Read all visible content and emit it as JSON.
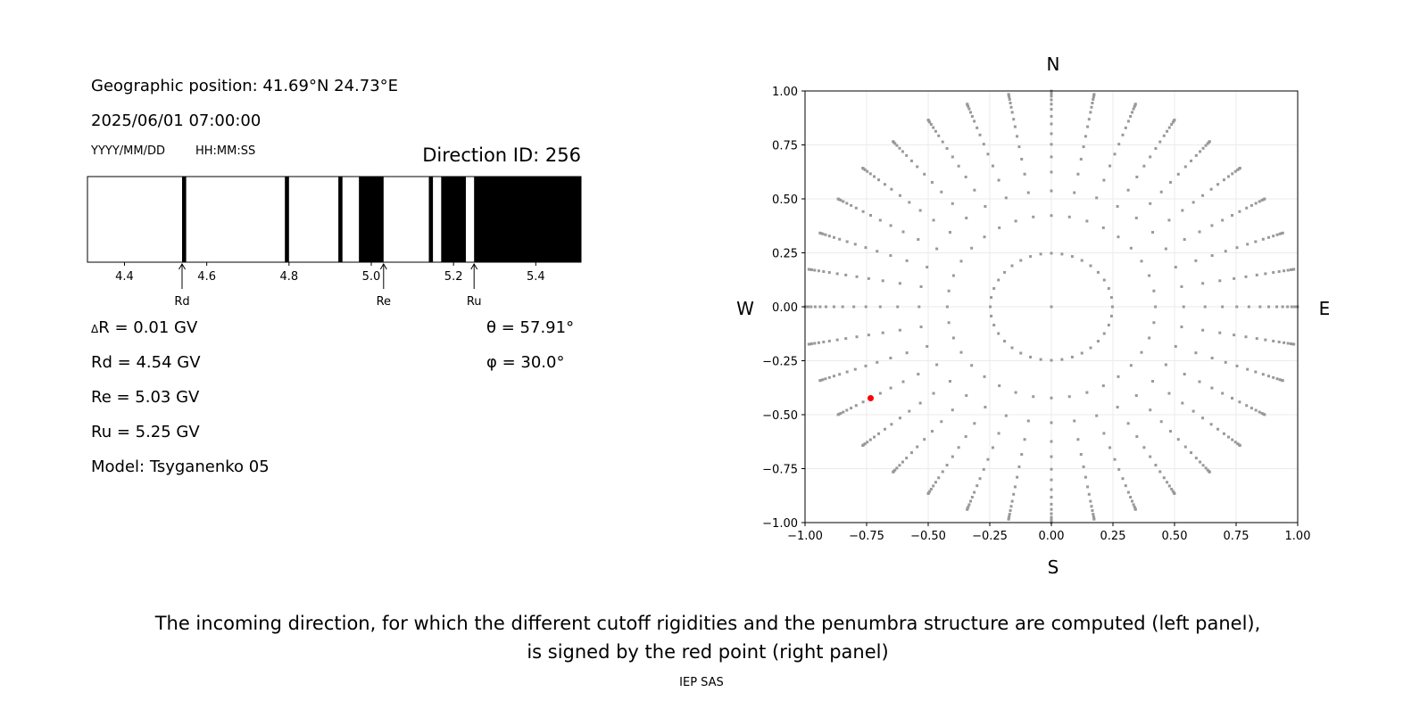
{
  "info": {
    "geo_position": "Geographic position: 41.69°N 24.73°E",
    "datetime": "2025/06/01 07:00:00",
    "date_format": "YYYY/MM/DD",
    "time_format": "HH:MM:SS",
    "direction_id": "Direction ID: 256",
    "delta_r_symbol": "Δ",
    "delta_r": "R = 0.01 GV",
    "rd": "Rd = 4.54 GV",
    "re": "Re = 5.03 GV",
    "ru": "Ru = 5.25 GV",
    "model": "Model: Tsyganenko 05",
    "theta": "θ = 57.91°",
    "phi": "φ = 30.0°"
  },
  "caption": {
    "line1": "The incoming direction, for which the different cutoff rigidities and the penumbra structure are computed (left panel),",
    "line2": "is signed by the red point (right panel)",
    "credit": "IEP SAS"
  },
  "compass": {
    "n": "N",
    "s": "S",
    "w": "W",
    "e": "E"
  },
  "chart_data": [
    {
      "type": "bar",
      "xlim": [
        4.31,
        5.51
      ],
      "xticks": [
        4.4,
        4.6,
        4.8,
        5.0,
        5.2,
        5.4
      ],
      "xtick_labels": [
        "4.4",
        "4.6",
        "4.8",
        "5.0",
        "5.2",
        "5.4"
      ],
      "forbidden_bands_gv": [
        [
          4.54,
          4.55
        ],
        [
          4.79,
          4.8
        ],
        [
          4.92,
          4.93
        ],
        [
          4.97,
          5.03
        ],
        [
          5.14,
          5.15
        ],
        [
          5.17,
          5.23
        ],
        [
          5.25,
          5.51
        ]
      ],
      "colors": {
        "allowed": "#ffffff",
        "forbidden": "#000000"
      },
      "markers": [
        {
          "label": "Rd",
          "value": 4.54
        },
        {
          "label": "Re",
          "value": 5.03
        },
        {
          "label": "Ru",
          "value": 5.25
        }
      ]
    },
    {
      "type": "scatter",
      "xlim": [
        -1,
        1
      ],
      "ylim": [
        -1,
        1
      ],
      "grid": true,
      "ticks": [
        -1.0,
        -0.75,
        -0.5,
        -0.25,
        0.0,
        0.25,
        0.5,
        0.75,
        1.0
      ],
      "tick_labels": [
        "−1.00",
        "−0.75",
        "−0.50",
        "−0.25",
        "0.00",
        "0.25",
        "0.50",
        "0.75",
        "1.00"
      ],
      "grid_theta_deg": [
        14.36,
        25.0,
        32.48,
        38.62,
        43.99,
        48.83,
        53.32,
        57.91,
        61.93,
        66.21,
        69.86,
        73.49,
        77.36,
        80.99,
        84.63,
        88.21
      ],
      "grid_phi_step_deg": 10,
      "include_zenith": true,
      "selected": {
        "theta_deg": 57.91,
        "phi_deg": 30.0
      },
      "colors": {
        "points": "#999999",
        "selected": "#ff0000"
      }
    }
  ]
}
